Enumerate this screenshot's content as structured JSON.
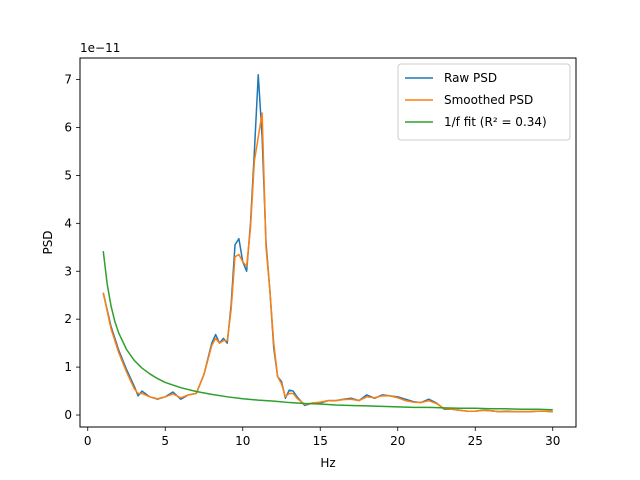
{
  "chart_data": {
    "type": "line",
    "xlabel": "Hz",
    "ylabel": "PSD",
    "offset_text": "1e−11",
    "xlim": [
      -0.5,
      31.5
    ],
    "ylim": [
      -0.25,
      7.45
    ],
    "xticks": [
      0,
      5,
      10,
      15,
      20,
      25,
      30
    ],
    "yticks": [
      0,
      1,
      2,
      3,
      4,
      5,
      6,
      7
    ],
    "legend_position": "top-right",
    "series": [
      {
        "name": "Raw PSD",
        "color": "#1f77b4",
        "x": [
          1.0,
          1.5,
          2.0,
          2.5,
          3.0,
          3.25,
          3.5,
          4.0,
          4.5,
          5.0,
          5.5,
          6.0,
          6.5,
          7.0,
          7.5,
          8.0,
          8.25,
          8.5,
          8.75,
          9.0,
          9.25,
          9.5,
          9.75,
          10.0,
          10.25,
          10.5,
          10.75,
          11.0,
          11.25,
          11.5,
          11.75,
          12.0,
          12.25,
          12.5,
          12.75,
          13.0,
          13.25,
          13.5,
          14.0,
          14.5,
          15.0,
          15.5,
          16.0,
          16.5,
          17.0,
          17.5,
          18.0,
          18.5,
          19.0,
          19.5,
          20.0,
          20.5,
          21.0,
          21.5,
          22.0,
          22.5,
          23.0,
          23.5,
          24.0,
          24.5,
          25.0,
          25.5,
          26.0,
          26.5,
          27.0,
          27.5,
          28.0,
          28.5,
          29.0,
          29.5,
          30.0
        ],
        "y": [
          2.55,
          1.85,
          1.35,
          0.95,
          0.6,
          0.4,
          0.5,
          0.38,
          0.33,
          0.38,
          0.48,
          0.33,
          0.42,
          0.45,
          0.85,
          1.5,
          1.68,
          1.5,
          1.6,
          1.5,
          2.3,
          3.55,
          3.68,
          3.2,
          3.0,
          4.0,
          5.5,
          7.1,
          5.8,
          3.6,
          2.6,
          1.4,
          0.8,
          0.7,
          0.35,
          0.52,
          0.5,
          0.38,
          0.2,
          0.25,
          0.25,
          0.3,
          0.3,
          0.33,
          0.35,
          0.3,
          0.42,
          0.35,
          0.42,
          0.4,
          0.38,
          0.33,
          0.28,
          0.26,
          0.33,
          0.25,
          0.12,
          0.12,
          0.1,
          0.08,
          0.08,
          0.1,
          0.09,
          0.07,
          0.08,
          0.07,
          0.07,
          0.07,
          0.08,
          0.08,
          0.07
        ]
      },
      {
        "name": "Smoothed PSD",
        "color": "#ff7f0e",
        "x": [
          1.0,
          1.5,
          2.0,
          2.5,
          3.0,
          3.25,
          3.5,
          4.0,
          4.5,
          5.0,
          5.5,
          6.0,
          6.5,
          7.0,
          7.5,
          8.0,
          8.25,
          8.5,
          8.75,
          9.0,
          9.25,
          9.5,
          9.75,
          10.0,
          10.25,
          10.5,
          10.75,
          11.0,
          11.25,
          11.5,
          11.75,
          12.0,
          12.25,
          12.5,
          12.75,
          13.0,
          13.25,
          13.5,
          14.0,
          14.5,
          15.0,
          15.5,
          16.0,
          16.5,
          17.0,
          17.5,
          18.0,
          18.5,
          19.0,
          19.5,
          20.0,
          20.5,
          21.0,
          21.5,
          22.0,
          22.5,
          23.0,
          23.5,
          24.0,
          24.5,
          25.0,
          25.5,
          26.0,
          26.5,
          27.0,
          27.5,
          28.0,
          28.5,
          29.0,
          29.5,
          30.0
        ],
        "y": [
          2.55,
          1.8,
          1.3,
          0.9,
          0.55,
          0.45,
          0.45,
          0.38,
          0.34,
          0.38,
          0.44,
          0.36,
          0.42,
          0.45,
          0.85,
          1.45,
          1.6,
          1.5,
          1.55,
          1.55,
          2.2,
          3.3,
          3.35,
          3.2,
          3.1,
          3.9,
          5.3,
          5.8,
          6.3,
          3.5,
          2.6,
          1.5,
          0.8,
          0.65,
          0.38,
          0.45,
          0.45,
          0.35,
          0.22,
          0.25,
          0.27,
          0.3,
          0.3,
          0.32,
          0.33,
          0.3,
          0.38,
          0.36,
          0.4,
          0.4,
          0.36,
          0.3,
          0.27,
          0.26,
          0.3,
          0.24,
          0.13,
          0.12,
          0.1,
          0.08,
          0.08,
          0.1,
          0.09,
          0.07,
          0.07,
          0.07,
          0.07,
          0.07,
          0.08,
          0.08,
          0.07
        ]
      },
      {
        "name": "1/f fit (R² = 0.34)",
        "color": "#2ca02c",
        "x": [
          1.0,
          1.25,
          1.5,
          1.75,
          2.0,
          2.5,
          3.0,
          3.5,
          4.0,
          4.5,
          5.0,
          6.0,
          7.0,
          8.0,
          9.0,
          10.0,
          11.0,
          12.0,
          13.0,
          14.0,
          15.0,
          16.0,
          17.0,
          18.0,
          19.0,
          20.0,
          21.0,
          22.0,
          23.0,
          24.0,
          25.0,
          26.0,
          27.0,
          28.0,
          29.0,
          30.0
        ],
        "y": [
          3.42,
          2.74,
          2.28,
          1.95,
          1.71,
          1.37,
          1.14,
          0.98,
          0.86,
          0.76,
          0.68,
          0.57,
          0.49,
          0.43,
          0.38,
          0.34,
          0.31,
          0.29,
          0.26,
          0.24,
          0.23,
          0.21,
          0.2,
          0.19,
          0.18,
          0.17,
          0.16,
          0.16,
          0.15,
          0.14,
          0.14,
          0.13,
          0.13,
          0.12,
          0.12,
          0.11
        ]
      }
    ]
  }
}
